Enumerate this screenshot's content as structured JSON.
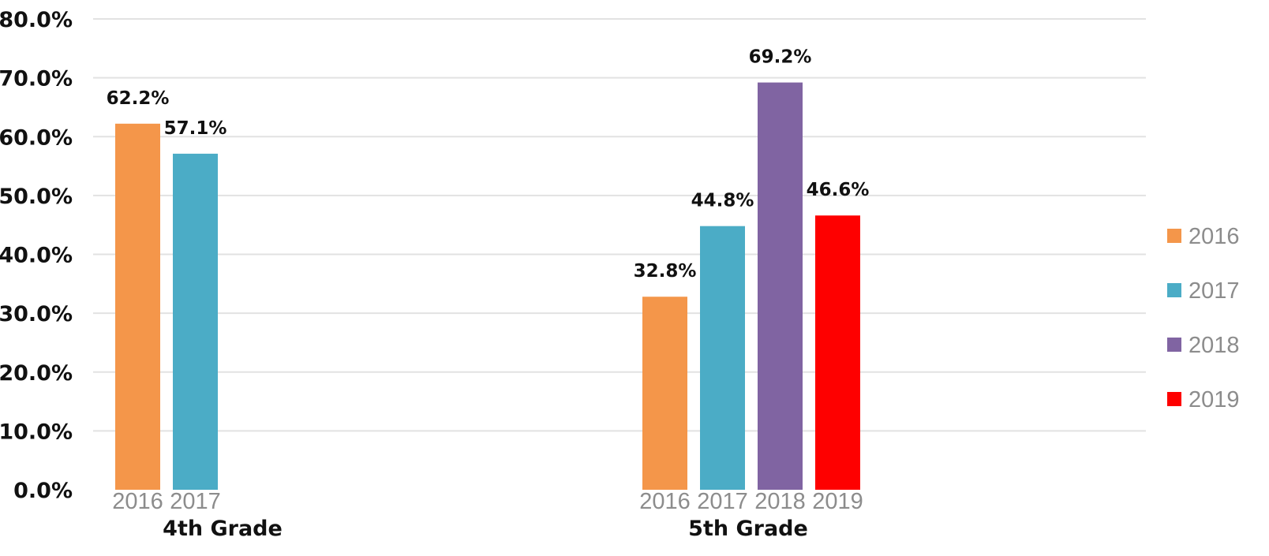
{
  "chart_data": {
    "type": "bar",
    "title": "",
    "xlabel": "",
    "ylabel": "",
    "ylim": [
      0,
      80
    ],
    "y_tick_step": 10,
    "y_tick_format": "percent_1dp",
    "grid": true,
    "legend_position": "right",
    "groups": [
      {
        "label": "4th Grade",
        "bars": [
          {
            "category": "2016",
            "value": 62.2,
            "label": "62.2%"
          },
          {
            "category": "2017",
            "value": 57.1,
            "label": "57.1%"
          }
        ]
      },
      {
        "label": "5th Grade",
        "bars": [
          {
            "category": "2016",
            "value": 32.8,
            "label": "32.8%"
          },
          {
            "category": "2017",
            "value": 44.8,
            "label": "44.8%"
          },
          {
            "category": "2018",
            "value": 69.2,
            "label": "69.2%"
          },
          {
            "category": "2019",
            "value": 46.6,
            "label": "46.6%"
          }
        ]
      }
    ],
    "legend": [
      {
        "name": "2016",
        "color": "#f4964a"
      },
      {
        "name": "2017",
        "color": "#4bacc6"
      },
      {
        "name": "2018",
        "color": "#8064a2"
      },
      {
        "name": "2019",
        "color": "#fe0000"
      }
    ],
    "y_tick_labels": [
      "0.0%",
      "10.0%",
      "20.0%",
      "30.0%",
      "40.0%",
      "50.0%",
      "60.0%",
      "70.0%",
      "80.0%"
    ]
  }
}
